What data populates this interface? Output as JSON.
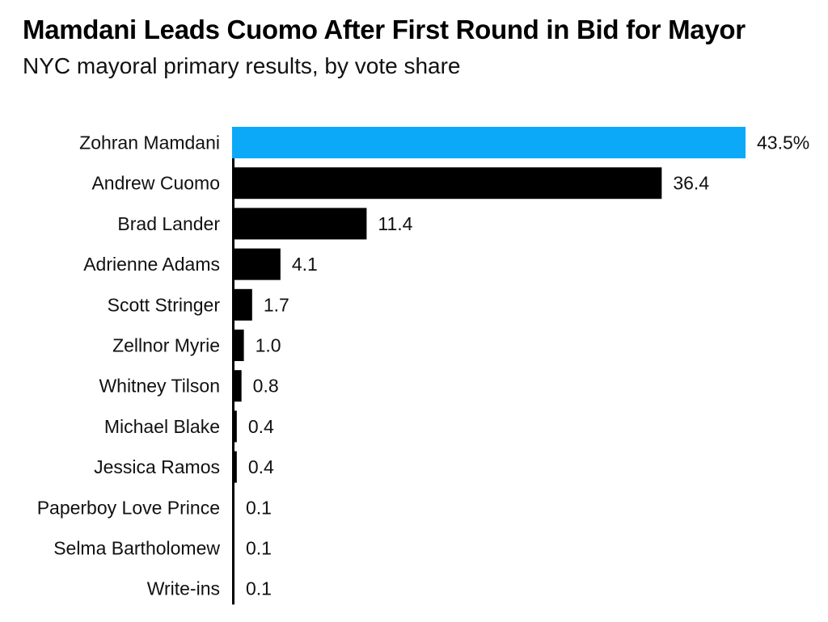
{
  "chart_data": {
    "type": "bar",
    "orientation": "horizontal",
    "title": "Mamdani Leads Cuomo After First Round in Bid for Mayor",
    "subtitle": "NYC mayoral primary results, by vote share",
    "categories": [
      "Zohran Mamdani",
      "Andrew Cuomo",
      "Brad Lander",
      "Adrienne Adams",
      "Scott Stringer",
      "Zellnor Myrie",
      "Whitney Tilson",
      "Michael Blake",
      "Jessica Ramos",
      "Paperboy Love Prince",
      "Selma Bartholomew",
      "Write-ins"
    ],
    "values": [
      43.5,
      36.4,
      11.4,
      4.1,
      1.7,
      1.0,
      0.8,
      0.4,
      0.4,
      0.1,
      0.1,
      0.1
    ],
    "value_labels": [
      "43.5%",
      "36.4",
      "11.4",
      "4.1",
      "1.7",
      "1.0",
      "0.8",
      "0.4",
      "0.4",
      "0.1",
      "0.1",
      "0.1"
    ],
    "xlim": [
      0,
      43.5
    ],
    "grid": false,
    "legend": "none",
    "colors": {
      "highlight": "#0ca9f9",
      "default": "#000000"
    },
    "highlight_index": 0
  }
}
